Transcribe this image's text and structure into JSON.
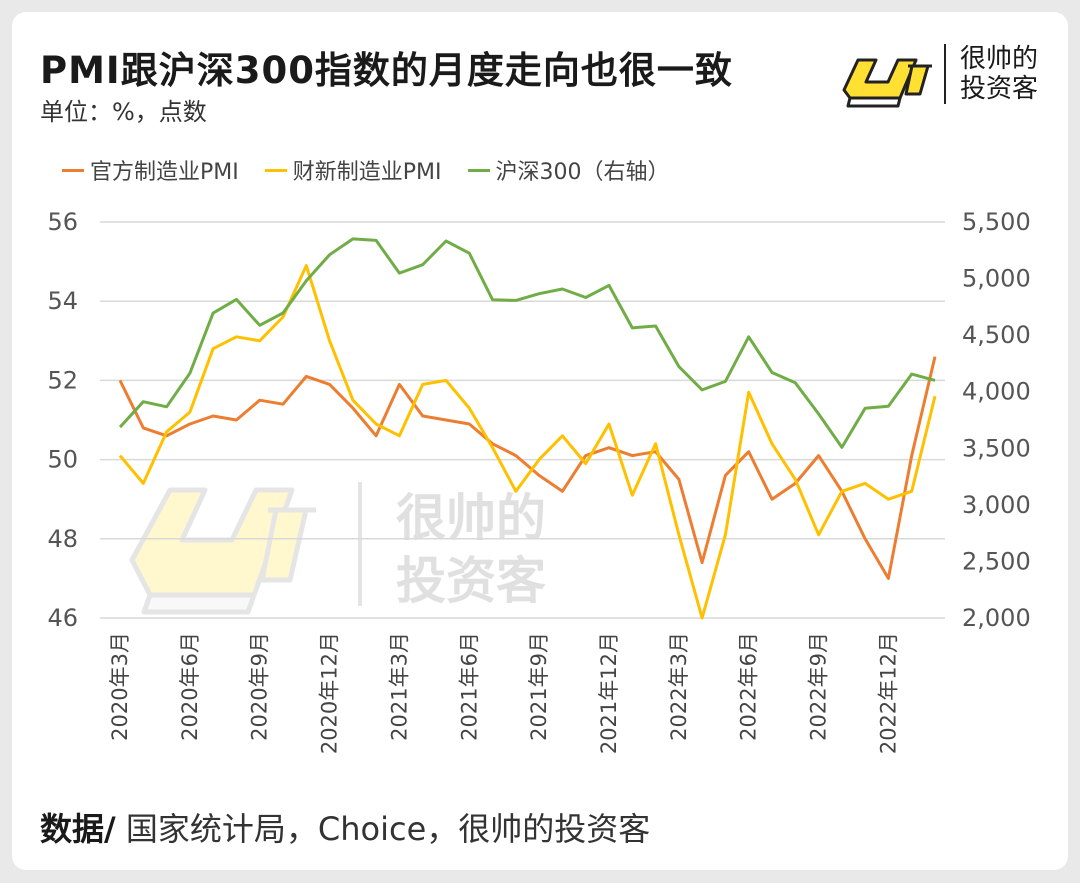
{
  "title": "PMI跟沪深300指数的月度走向也很一致",
  "subtitle": "单位：%，点数",
  "brand": {
    "line1": "很帅的",
    "line2": "投资客",
    "logo_text": "帅"
  },
  "watermark": {
    "line1": "很帅的",
    "line2": "投资客"
  },
  "source": {
    "label": "数据/",
    "text": " 国家统计局，Choice，很帅的投资客"
  },
  "colors": {
    "official": "#ed7d31",
    "caixin": "#ffc000",
    "hs300": "#70ad47",
    "brand_yellow": "#ffe033"
  },
  "chart_data": {
    "type": "line",
    "x": [
      "2020年3月",
      "2020年4月",
      "2020年5月",
      "2020年6月",
      "2020年7月",
      "2020年8月",
      "2020年9月",
      "2020年10月",
      "2020年11月",
      "2020年12月",
      "2021年1月",
      "2021年2月",
      "2021年3月",
      "2021年4月",
      "2021年5月",
      "2021年6月",
      "2021年7月",
      "2021年8月",
      "2021年9月",
      "2021年10月",
      "2021年11月",
      "2021年12月",
      "2022年1月",
      "2022年2月",
      "2022年3月",
      "2022年4月",
      "2022年5月",
      "2022年6月",
      "2022年7月",
      "2022年8月",
      "2022年9月",
      "2022年10月",
      "2022年11月",
      "2022年12月",
      "2023年1月",
      "2023年2月"
    ],
    "x_tick_labels": [
      "2020年3月",
      "2020年6月",
      "2020年9月",
      "2020年12月",
      "2021年3月",
      "2021年6月",
      "2021年9月",
      "2021年12月",
      "2022年3月",
      "2022年6月",
      "2022年9月",
      "2022年12月"
    ],
    "y_left": {
      "ticks": [
        "46",
        "48",
        "50",
        "52",
        "54",
        "56"
      ],
      "range": [
        46,
        56
      ]
    },
    "y_right": {
      "ticks": [
        "2,000",
        "2,500",
        "3,000",
        "3,500",
        "4,000",
        "4,500",
        "5,000",
        "5,500"
      ],
      "range": [
        2000,
        5500
      ]
    },
    "series": [
      {
        "name": "官方制造业PMI",
        "axis": "left",
        "values": [
          52.0,
          50.8,
          50.6,
          50.9,
          51.1,
          51.0,
          51.5,
          51.4,
          52.1,
          51.9,
          51.3,
          50.6,
          51.9,
          51.1,
          51.0,
          50.9,
          50.4,
          50.1,
          49.6,
          49.2,
          50.1,
          50.3,
          50.1,
          50.2,
          49.5,
          47.4,
          49.6,
          50.2,
          49.0,
          49.4,
          50.1,
          49.2,
          48.0,
          47.0,
          50.1,
          52.6
        ]
      },
      {
        "name": "财新制造业PMI",
        "axis": "left",
        "values": [
          50.1,
          49.4,
          50.7,
          51.2,
          52.8,
          53.1,
          53.0,
          53.6,
          54.9,
          53.0,
          51.5,
          50.9,
          50.6,
          51.9,
          52.0,
          51.3,
          50.3,
          49.2,
          50.0,
          50.6,
          49.9,
          50.9,
          49.1,
          50.4,
          48.1,
          46.0,
          48.1,
          51.7,
          50.4,
          49.5,
          48.1,
          49.2,
          49.4,
          49.0,
          49.2,
          51.6
        ]
      },
      {
        "name": "沪深300（右轴）",
        "axis": "right",
        "values": [
          3687,
          3912,
          3867,
          4164,
          4695,
          4816,
          4587,
          4696,
          4980,
          5211,
          5351,
          5337,
          5048,
          5123,
          5332,
          5224,
          4812,
          4807,
          4866,
          4908,
          4833,
          4940,
          4564,
          4581,
          4222,
          4016,
          4091,
          4485,
          4170,
          4079,
          3804,
          3508,
          3853,
          3871,
          4156,
          4100
        ]
      }
    ]
  }
}
